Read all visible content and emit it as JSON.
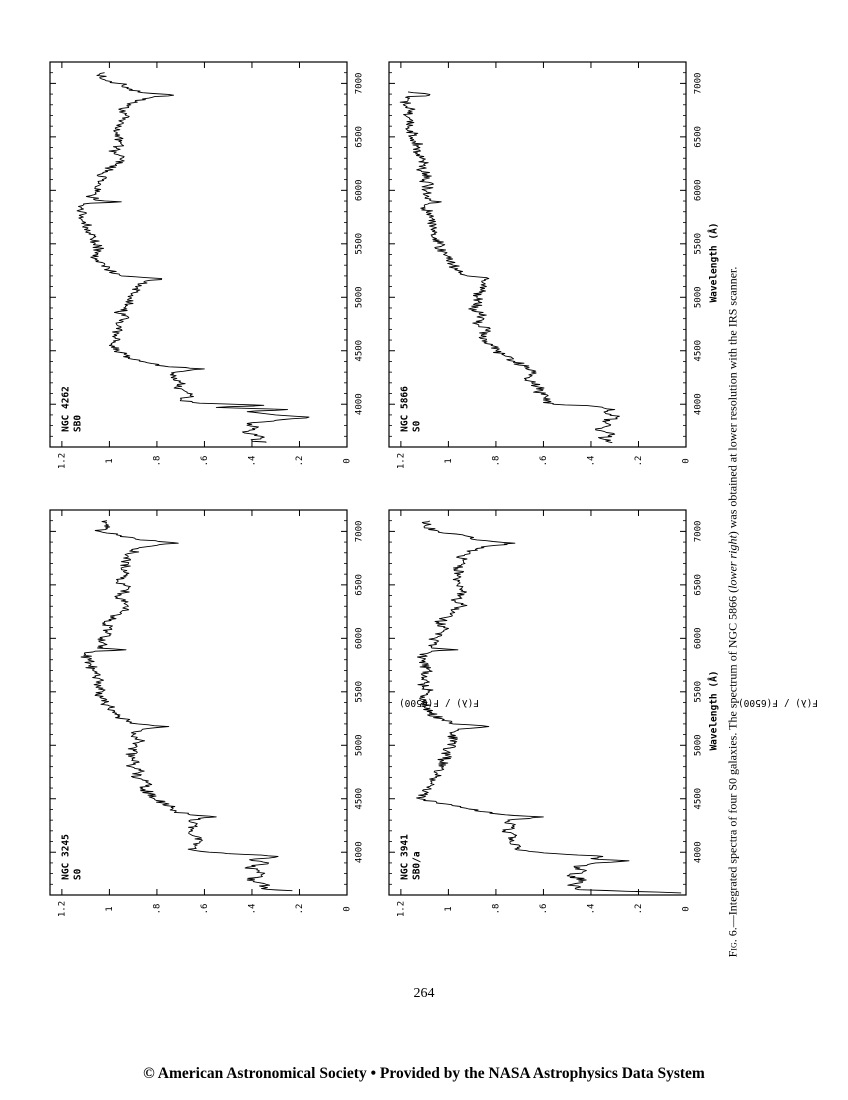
{
  "chart_data": [
    {
      "type": "line",
      "galaxy": "NGC 3245",
      "morph_type": "S0",
      "xlabel": "",
      "ylabel": "F(λ) / F(6500)",
      "xlim": [
        3600,
        7200
      ],
      "ylim": [
        0,
        1.25
      ],
      "x_ticks": [
        4000,
        4500,
        5000,
        5500,
        6000,
        6500,
        7000
      ],
      "y_ticks": [
        "0",
        ".2",
        ".4",
        ".6",
        ".8",
        "1",
        "1.2"
      ],
      "series": [
        {
          "x": [
            3640,
            3660,
            3700,
            3740,
            3780,
            3820,
            3860,
            3900,
            3930,
            3960,
            3980,
            4000,
            4020,
            4060,
            4100,
            4150,
            4200,
            4250,
            4300,
            4330,
            4350,
            4380,
            4420,
            4460,
            4500,
            4550,
            4600,
            4650,
            4700,
            4750,
            4800,
            4850,
            4900,
            4950,
            5000,
            5050,
            5100,
            5150,
            5175,
            5200,
            5250,
            5300,
            5350,
            5400,
            5450,
            5500,
            5550,
            5600,
            5650,
            5700,
            5750,
            5800,
            5850,
            5880,
            5893,
            5910,
            5950,
            6000,
            6050,
            6100,
            6150,
            6200,
            6250,
            6300,
            6350,
            6400,
            6450,
            6500,
            6550,
            6600,
            6650,
            6700,
            6750,
            6800,
            6840,
            6870,
            6890,
            6920,
            6960,
            7000,
            7050,
            7100
          ],
          "values": [
            0.23,
            0.36,
            0.34,
            0.42,
            0.36,
            0.37,
            0.42,
            0.33,
            0.41,
            0.29,
            0.43,
            0.58,
            0.65,
            0.64,
            0.62,
            0.64,
            0.65,
            0.64,
            0.66,
            0.55,
            0.66,
            0.72,
            0.74,
            0.77,
            0.81,
            0.83,
            0.86,
            0.84,
            0.9,
            0.87,
            0.91,
            0.88,
            0.92,
            0.9,
            0.89,
            0.87,
            0.9,
            0.86,
            0.75,
            0.88,
            0.95,
            0.97,
            1.0,
            1.02,
            1.04,
            1.03,
            1.05,
            1.04,
            1.06,
            1.07,
            1.08,
            1.09,
            1.1,
            1.06,
            0.93,
            1.05,
            1.02,
            1.03,
            1.01,
            1.0,
            1.02,
            0.98,
            0.95,
            0.92,
            0.95,
            0.96,
            0.93,
            0.94,
            0.97,
            0.93,
            0.95,
            0.92,
            0.94,
            0.9,
            0.88,
            0.8,
            0.71,
            0.87,
            0.95,
            1.04,
            1.02,
            1.01
          ]
        }
      ]
    },
    {
      "type": "line",
      "galaxy": "NGC 4262",
      "morph_type": "SB0",
      "xlabel": "",
      "ylabel": "",
      "xlim": [
        3600,
        7200
      ],
      "ylim": [
        0,
        1.25
      ],
      "x_ticks": [
        4000,
        4500,
        5000,
        5500,
        6000,
        6500,
        7000
      ],
      "y_ticks": [
        "0",
        ".2",
        ".4",
        ".6",
        ".8",
        "1",
        "1.2"
      ],
      "series": [
        {
          "x": [
            3640,
            3660,
            3700,
            3740,
            3780,
            3820,
            3850,
            3880,
            3900,
            3930,
            3950,
            3970,
            3990,
            4010,
            4040,
            4080,
            4120,
            4160,
            4200,
            4250,
            4300,
            4330,
            4350,
            4380,
            4420,
            4460,
            4500,
            4550,
            4600,
            4650,
            4700,
            4750,
            4800,
            4850,
            4900,
            4950,
            5000,
            5050,
            5100,
            5150,
            5175,
            5200,
            5250,
            5300,
            5350,
            5400,
            5450,
            5500,
            5550,
            5600,
            5650,
            5700,
            5750,
            5800,
            5850,
            5880,
            5893,
            5910,
            5950,
            6000,
            6050,
            6100,
            6150,
            6200,
            6250,
            6300,
            6350,
            6400,
            6450,
            6500,
            6550,
            6600,
            6650,
            6700,
            6750,
            6800,
            6840,
            6870,
            6890,
            6920,
            6960,
            7000,
            7050,
            7100
          ],
          "values": [
            0.34,
            0.4,
            0.36,
            0.44,
            0.38,
            0.42,
            0.3,
            0.16,
            0.3,
            0.42,
            0.25,
            0.55,
            0.35,
            0.62,
            0.7,
            0.66,
            0.68,
            0.72,
            0.7,
            0.74,
            0.72,
            0.6,
            0.75,
            0.82,
            0.9,
            0.93,
            0.97,
            1.0,
            0.96,
            0.98,
            0.95,
            0.97,
            0.93,
            0.96,
            0.94,
            0.92,
            0.91,
            0.88,
            0.89,
            0.85,
            0.78,
            0.95,
            1.0,
            1.02,
            1.06,
            1.05,
            1.04,
            1.06,
            1.07,
            1.08,
            1.09,
            1.1,
            1.11,
            1.12,
            1.13,
            1.08,
            0.95,
            1.06,
            1.08,
            1.06,
            1.04,
            1.03,
            1.04,
            1.0,
            0.97,
            0.95,
            0.98,
            0.97,
            0.95,
            0.96,
            0.98,
            0.95,
            0.96,
            0.93,
            0.95,
            0.91,
            0.89,
            0.82,
            0.73,
            0.88,
            0.92,
            0.96,
            1.04,
            1.02
          ]
        }
      ]
    },
    {
      "type": "line",
      "galaxy": "NGC 3941",
      "morph_type": "SB0/a",
      "xlabel": "Wavelength  (Å)",
      "ylabel": "F(λ) / F(6500)",
      "xlim": [
        3600,
        7200
      ],
      "ylim": [
        0,
        1.25
      ],
      "x_ticks": [
        4000,
        4500,
        5000,
        5500,
        6000,
        6500,
        7000
      ],
      "y_ticks": [
        "0",
        ".2",
        ".4",
        ".6",
        ".8",
        "1",
        "1.2"
      ],
      "series": [
        {
          "x": [
            3620,
            3650,
            3700,
            3740,
            3780,
            3820,
            3860,
            3900,
            3920,
            3940,
            3960,
            3980,
            4000,
            4030,
            4060,
            4100,
            4150,
            4200,
            4250,
            4300,
            4330,
            4350,
            4380,
            4420,
            4460,
            4500,
            4550,
            4600,
            4650,
            4700,
            4750,
            4800,
            4850,
            4900,
            4950,
            5000,
            5050,
            5100,
            5150,
            5175,
            5200,
            5250,
            5300,
            5350,
            5400,
            5450,
            5500,
            5550,
            5600,
            5650,
            5700,
            5750,
            5800,
            5850,
            5880,
            5893,
            5910,
            5950,
            6000,
            6050,
            6100,
            6150,
            6200,
            6250,
            6300,
            6350,
            6400,
            6450,
            6500,
            6550,
            6600,
            6650,
            6700,
            6750,
            6800,
            6840,
            6870,
            6890,
            6920,
            6960,
            7000,
            7050,
            7100
          ],
          "values": [
            0.02,
            0.45,
            0.48,
            0.42,
            0.5,
            0.43,
            0.47,
            0.38,
            0.24,
            0.4,
            0.35,
            0.5,
            0.62,
            0.72,
            0.7,
            0.74,
            0.72,
            0.76,
            0.73,
            0.75,
            0.6,
            0.76,
            0.86,
            0.95,
            1.05,
            1.12,
            1.1,
            1.08,
            1.07,
            1.05,
            1.06,
            1.02,
            1.03,
            1.0,
            1.01,
            0.98,
            0.97,
            0.99,
            0.96,
            0.83,
            0.98,
            1.03,
            1.08,
            1.1,
            1.09,
            1.1,
            1.08,
            1.11,
            1.09,
            1.1,
            1.08,
            1.11,
            1.1,
            1.12,
            1.07,
            0.96,
            1.07,
            1.05,
            1.06,
            1.03,
            1.02,
            1.04,
            1.0,
            0.98,
            0.94,
            0.97,
            0.96,
            0.94,
            0.96,
            0.98,
            0.95,
            0.96,
            0.93,
            0.95,
            0.91,
            0.88,
            0.8,
            0.72,
            0.88,
            0.93,
            1.04,
            1.1,
            1.08
          ]
        }
      ]
    },
    {
      "type": "line",
      "galaxy": "NGC 5866",
      "morph_type": "S0",
      "xlabel": "Wavelength  (Å)",
      "ylabel": "",
      "xlim": [
        3600,
        7200
      ],
      "ylim": [
        0,
        1.25
      ],
      "x_ticks": [
        4000,
        4500,
        5000,
        5500,
        6000,
        6500,
        7000
      ],
      "y_ticks": [
        "0",
        ".2",
        ".4",
        ".6",
        ".8",
        "1",
        "1.2"
      ],
      "series": [
        {
          "x": [
            3640,
            3680,
            3720,
            3760,
            3800,
            3840,
            3880,
            3920,
            3950,
            3980,
            4000,
            4040,
            4080,
            4120,
            4160,
            4200,
            4250,
            4300,
            4350,
            4400,
            4450,
            4500,
            4550,
            4600,
            4650,
            4700,
            4750,
            4800,
            4850,
            4900,
            4950,
            5000,
            5050,
            5100,
            5150,
            5175,
            5200,
            5250,
            5300,
            5350,
            5400,
            5450,
            5500,
            5550,
            5600,
            5650,
            5700,
            5750,
            5800,
            5850,
            5880,
            5893,
            5910,
            5950,
            6000,
            6050,
            6100,
            6150,
            6200,
            6250,
            6300,
            6350,
            6400,
            6450,
            6500,
            6550,
            6600,
            6650,
            6700,
            6750,
            6800,
            6840,
            6870,
            6890,
            6920
          ],
          "values": [
            0.31,
            0.36,
            0.3,
            0.38,
            0.32,
            0.35,
            0.29,
            0.34,
            0.3,
            0.38,
            0.56,
            0.6,
            0.58,
            0.63,
            0.62,
            0.65,
            0.66,
            0.65,
            0.68,
            0.72,
            0.76,
            0.8,
            0.82,
            0.84,
            0.86,
            0.84,
            0.88,
            0.85,
            0.87,
            0.9,
            0.86,
            0.88,
            0.87,
            0.84,
            0.86,
            0.83,
            0.92,
            0.96,
            0.98,
            1.0,
            1.02,
            1.04,
            1.03,
            1.05,
            1.06,
            1.05,
            1.07,
            1.08,
            1.09,
            1.1,
            1.08,
            1.03,
            1.08,
            1.09,
            1.1,
            1.08,
            1.11,
            1.09,
            1.12,
            1.1,
            1.11,
            1.13,
            1.12,
            1.14,
            1.16,
            1.15,
            1.17,
            1.15,
            1.18,
            1.16,
            1.19,
            1.17,
            1.18,
            1.08,
            1.17
          ]
        }
      ]
    }
  ],
  "caption": {
    "fig_label": "Fig. 6.",
    "text_a": "—Integrated spectra of four S0 galaxies. The spectrum of NGC 5866 (",
    "text_italic": "lower right",
    "text_b": ") was obtained at lower resolution with the IRS scanner."
  },
  "page_number": "264",
  "footer": "© American Astronomical Society  •  Provided by the NASA Astrophysics Data System"
}
